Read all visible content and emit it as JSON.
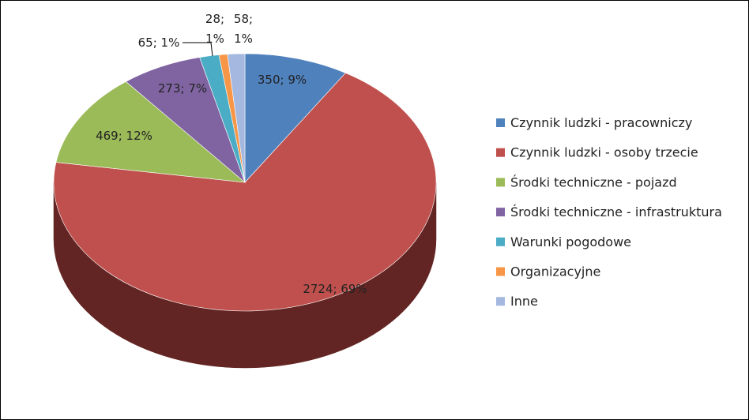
{
  "chart_data": {
    "type": "pie",
    "style": "3d",
    "title": "",
    "legend_position": "right",
    "slices": [
      {
        "name": "Czynnik ludzki - pracowniczy",
        "value": 350,
        "percent": "9%",
        "color": "#4F81BD",
        "side_color": "#2C4D75"
      },
      {
        "name": "Czynnik ludzki - osoby trzecie",
        "value": 2724,
        "percent": "69%",
        "color": "#C0504D",
        "side_color": "#632523"
      },
      {
        "name": "Środki techniczne - pojazd",
        "value": 469,
        "percent": "12%",
        "color": "#9BBB59",
        "side_color": "#5F7530"
      },
      {
        "name": "Środki techniczne - infrastruktura",
        "value": 273,
        "percent": "7%",
        "color": "#8064A2",
        "side_color": "#4D3B62"
      },
      {
        "name": "Warunki pogodowe",
        "value": 65,
        "percent": "1%",
        "color": "#4BACC6",
        "side_color": "#27697B"
      },
      {
        "name": "Organizacyjne",
        "value": 28,
        "percent": "1%",
        "color": "#F79646",
        "side_color": "#B65708"
      },
      {
        "name": "Inne",
        "value": 58,
        "percent": "1%",
        "color": "#A5B9E0",
        "side_color": "#6D83B3"
      }
    ]
  }
}
